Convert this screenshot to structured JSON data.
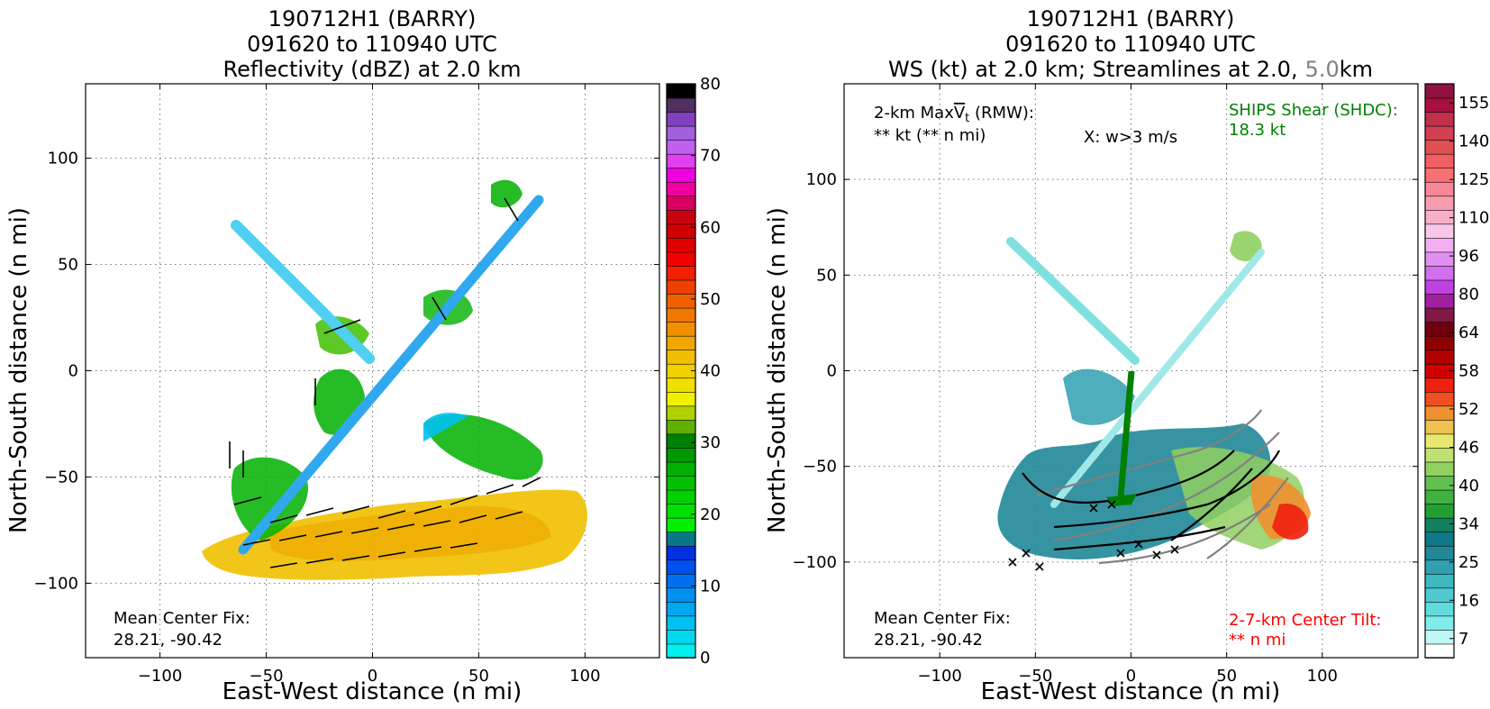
{
  "left_panel": {
    "title_line1": "190712H1 (BARRY)",
    "title_line2": "091620 to 110940 UTC",
    "title_line3": "Reflectivity (dBZ) at 2.0 km",
    "xlabel": "East-West distance (n mi)",
    "ylabel": "North-South distance (n mi)",
    "mean_center_label": "Mean Center Fix:",
    "mean_center_value": "28.21, -90.42"
  },
  "right_panel": {
    "title_line1": "190712H1 (BARRY)",
    "title_line2": "091620 to 110940 UTC",
    "title_line3_a": "WS (kt) at 2.0 km; Streamlines at 2.0,",
    "title_line3_b": "5.0",
    "title_line3_c": "km",
    "xlabel": "East-West distance (n mi)",
    "ylabel": "North-South distance (n mi)",
    "maxvt_label_a": "2-km Max",
    "maxvt_label_b": "V",
    "maxvt_label_sub": "t",
    "maxvt_label_c": " (RMW):",
    "maxvt_value": "** kt (** n mi)",
    "w_note": "X: w>3 m/s",
    "ships_label": "SHIPS Shear (SHDC):",
    "ships_value": "18.3 kt",
    "mean_center_label": "Mean Center Fix:",
    "mean_center_value": "28.21, -90.42",
    "tilt_label": "2-7-km Center Tilt:",
    "tilt_value": "** n mi"
  },
  "colors": {
    "ships": "#008000",
    "tilt": "#ff0000",
    "streamline_5km": "#808080"
  },
  "chart_data": [
    {
      "type": "heatmap",
      "title": "190712H1 (BARRY) 091620 to 110940 UTC Reflectivity (dBZ) at 2.0 km",
      "xlabel": "East-West distance (n mi)",
      "ylabel": "North-South distance (n mi)",
      "xlim": [
        -135,
        135
      ],
      "ylim": [
        -135,
        135
      ],
      "xticks": [
        -100,
        -50,
        0,
        50,
        100
      ],
      "yticks": [
        -100,
        -50,
        0,
        50,
        100
      ],
      "grid": true,
      "colorbar": {
        "min": 0,
        "max": 80,
        "ticks": [
          0,
          10,
          20,
          30,
          40,
          50,
          60,
          70,
          80
        ],
        "colors": [
          "#00f0f0",
          "#00d8f0",
          "#00c0f0",
          "#00a8f0",
          "#0090f0",
          "#0070f0",
          "#0050f0",
          "#0030e0",
          "#087888",
          "#00f000",
          "#00e000",
          "#00d000",
          "#00c000",
          "#00b000",
          "#009800",
          "#008000",
          "#60b000",
          "#b0d000",
          "#f0f000",
          "#f0e000",
          "#f0d000",
          "#f0c000",
          "#f0a800",
          "#f09000",
          "#f07800",
          "#f06000",
          "#f04000",
          "#f02000",
          "#f00000",
          "#e00000",
          "#d00000",
          "#c80010",
          "#d80060",
          "#f000a0",
          "#f000e0",
          "#e040f0",
          "#c060f0",
          "#a060e0",
          "#8040c0",
          "#503060",
          "#000000"
        ]
      }
    },
    {
      "type": "heatmap",
      "title": "190712H1 (BARRY) 091620 to 110940 UTC WS (kt) at 2.0 km; Streamlines at 2.0, 5.0 km",
      "xlabel": "East-West distance (n mi)",
      "ylabel": "North-South distance (n mi)",
      "xlim": [
        -150,
        150
      ],
      "ylim": [
        -150,
        150
      ],
      "xticks": [
        -100,
        -50,
        0,
        50,
        100
      ],
      "yticks": [
        -100,
        -50,
        0,
        50,
        100
      ],
      "grid": true,
      "colorbar": {
        "min": 7,
        "max": 160,
        "ticks": [
          7,
          16,
          25,
          34,
          40,
          46,
          52,
          58,
          64,
          80,
          96,
          110,
          125,
          140,
          155
        ],
        "colors": [
          "#ffffff",
          "#c0f8f8",
          "#80ecec",
          "#60dcdc",
          "#50c8d0",
          "#40b8c0",
          "#30a0b0",
          "#208898",
          "#107888",
          "#108060",
          "#20a030",
          "#40b040",
          "#60c050",
          "#90d060",
          "#c0e070",
          "#e8e870",
          "#f0c050",
          "#f09030",
          "#f05020",
          "#f02010",
          "#d00000",
          "#b00000",
          "#900000",
          "#700010",
          "#801848",
          "#a020a0",
          "#c040e0",
          "#d070f0",
          "#e090f0",
          "#f0b0f0",
          "#f8c8e8",
          "#f8b0c8",
          "#f89cb0",
          "#f88898",
          "#f87070",
          "#f06060",
          "#e05050",
          "#d04050",
          "#c03048",
          "#a81040",
          "#901040"
        ]
      }
    }
  ]
}
